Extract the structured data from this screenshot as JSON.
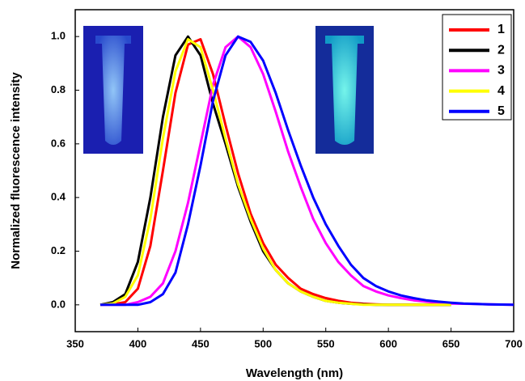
{
  "chart_data": {
    "type": "line",
    "xlabel": "Wavelength (nm)",
    "ylabel": "Normalized fluorescence intensity",
    "x": [
      370,
      380,
      390,
      400,
      410,
      420,
      430,
      440,
      450,
      460,
      470,
      480,
      490,
      500,
      510,
      520,
      530,
      540,
      550,
      560,
      570,
      580,
      590,
      600,
      610,
      620,
      630,
      640,
      650,
      660,
      670,
      680,
      690,
      700
    ],
    "series": [
      {
        "name": "1",
        "color": "#ff0000",
        "values": [
          0,
          0.002,
          0.01,
          0.06,
          0.22,
          0.5,
          0.79,
          0.97,
          0.99,
          0.86,
          0.67,
          0.49,
          0.34,
          0.23,
          0.15,
          0.1,
          0.06,
          0.04,
          0.025,
          0.015,
          0.008,
          0.004,
          0.002,
          0,
          0,
          0,
          0,
          0,
          0,
          null,
          null,
          null,
          null,
          null
        ]
      },
      {
        "name": "2",
        "color": "#000000",
        "values": [
          0,
          0.01,
          0.04,
          0.16,
          0.4,
          0.7,
          0.93,
          1.0,
          0.93,
          0.75,
          0.6,
          0.44,
          0.31,
          0.2,
          0.13,
          0.08,
          0.05,
          0.03,
          0.015,
          0.008,
          0.004,
          0.002,
          0,
          0,
          0,
          0,
          0,
          0,
          0,
          null,
          null,
          null,
          null,
          null
        ]
      },
      {
        "name": "3",
        "color": "#ff00ff",
        "values": [
          0,
          0,
          0,
          0.01,
          0.03,
          0.08,
          0.2,
          0.38,
          0.6,
          0.82,
          0.96,
          1.0,
          0.96,
          0.86,
          0.72,
          0.57,
          0.44,
          0.32,
          0.23,
          0.16,
          0.11,
          0.07,
          0.05,
          0.035,
          0.025,
          0.017,
          0.012,
          0.008,
          0.005,
          0.004,
          0.003,
          0.002,
          0.001,
          0
        ]
      },
      {
        "name": "4",
        "color": "#ffff00",
        "values": [
          0,
          0.005,
          0.03,
          0.11,
          0.32,
          0.62,
          0.87,
          0.99,
          0.96,
          0.8,
          0.62,
          0.45,
          0.32,
          0.21,
          0.13,
          0.08,
          0.05,
          0.03,
          0.015,
          0.008,
          0.004,
          0,
          0,
          0,
          0,
          0,
          0,
          0,
          0,
          null,
          null,
          null,
          null,
          null
        ]
      },
      {
        "name": "5",
        "color": "#0000ff",
        "values": [
          0,
          0,
          0,
          0,
          0.01,
          0.04,
          0.12,
          0.3,
          0.52,
          0.76,
          0.93,
          1.0,
          0.98,
          0.91,
          0.79,
          0.65,
          0.52,
          0.4,
          0.3,
          0.22,
          0.15,
          0.1,
          0.07,
          0.05,
          0.035,
          0.025,
          0.017,
          0.012,
          0.008,
          0.005,
          0.003,
          0.002,
          0.001,
          0
        ]
      }
    ],
    "xlim": [
      350,
      700
    ],
    "xticks": [
      350,
      400,
      450,
      500,
      550,
      600,
      650,
      700
    ],
    "ylim": [
      -0.1,
      1.1
    ],
    "yticks": [
      {
        "value": 0,
        "label": "0.0"
      },
      {
        "value": 0.2,
        "label": "0.2"
      },
      {
        "value": 0.4,
        "label": "0.4"
      },
      {
        "value": 0.6,
        "label": "0.6"
      },
      {
        "value": 0.8,
        "label": "0.8"
      },
      {
        "value": 1.0,
        "label": "1.0"
      }
    ],
    "legend": "upper right"
  }
}
